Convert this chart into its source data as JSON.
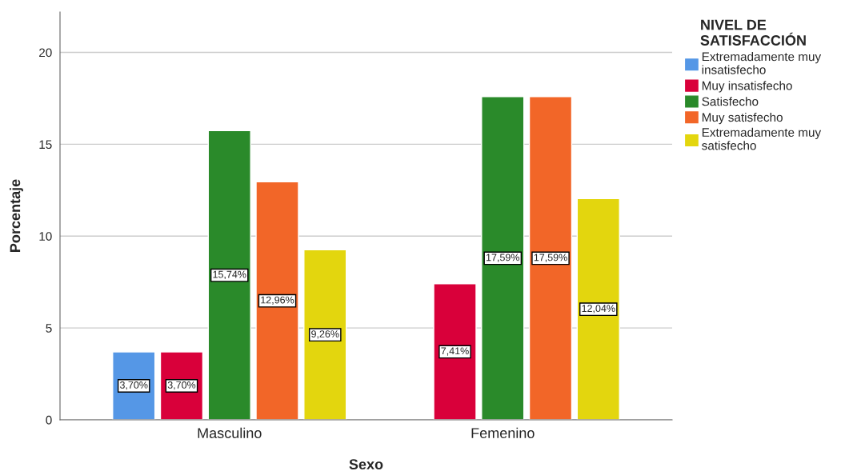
{
  "chart_data": {
    "type": "bar",
    "xlabel": "Sexo",
    "ylabel": "Porcentaje",
    "legend_title": "NIVEL DE\nSATISFACCIÓN",
    "categories": [
      "Masculino",
      "Femenino"
    ],
    "series": [
      {
        "name": "Extremadamente muy\ninsatisfecho",
        "color": "#5597e6",
        "values": [
          3.7,
          null
        ],
        "value_labels": [
          "3,70%",
          null
        ]
      },
      {
        "name": "Muy insatisfecho",
        "color": "#d9003a",
        "values": [
          3.7,
          7.41
        ],
        "value_labels": [
          "3,70%",
          "7,41%"
        ]
      },
      {
        "name": "Satisfecho",
        "color": "#2a8a2a",
        "values": [
          15.74,
          17.59
        ],
        "value_labels": [
          "15,74%",
          "17,59%"
        ]
      },
      {
        "name": "Muy satisfecho",
        "color": "#f26628",
        "values": [
          12.96,
          17.59
        ],
        "value_labels": [
          "12,96%",
          "17,59%"
        ]
      },
      {
        "name": "Extremadamente muy\nsatisfecho",
        "color": "#e3d60e",
        "values": [
          9.26,
          12.04
        ],
        "value_labels": [
          "9,26%",
          "12,04%"
        ]
      }
    ],
    "ylim": [
      0,
      22.2
    ],
    "yticks": [
      0,
      5,
      10,
      15,
      20
    ],
    "grid": "y",
    "legend": "right"
  }
}
